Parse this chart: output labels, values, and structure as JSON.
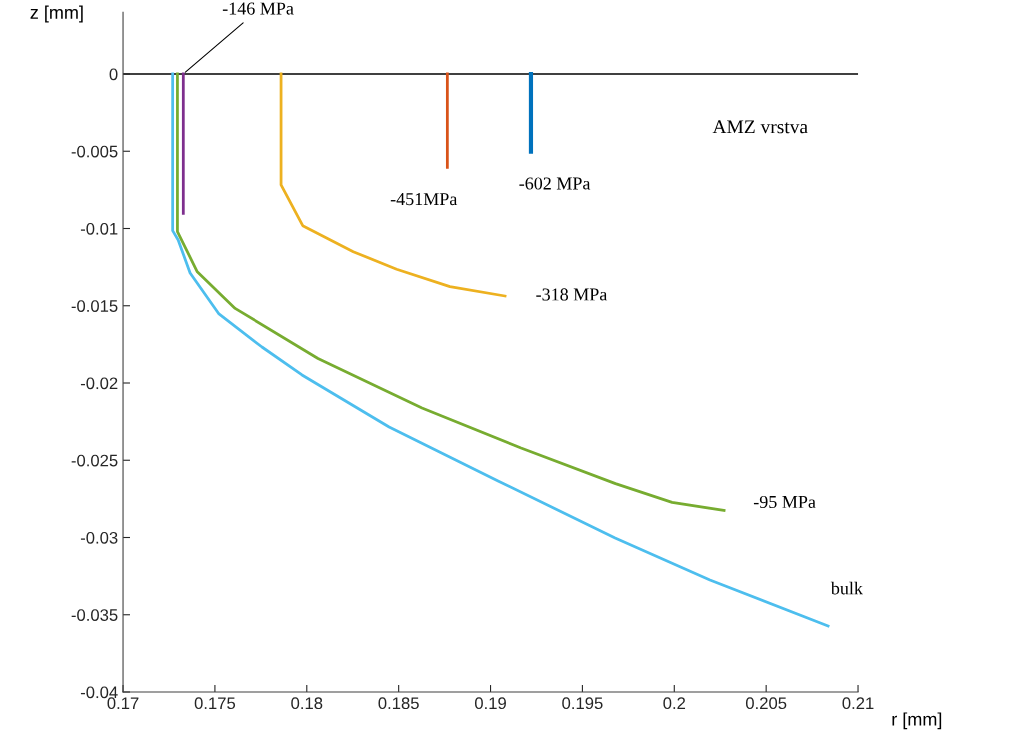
{
  "chart_data": {
    "type": "line",
    "xlabel": "r [mm]",
    "ylabel": "z [mm]",
    "xlim": [
      0.17,
      0.21
    ],
    "ylim": [
      -0.04,
      0.004
    ],
    "xticks": [
      0.17,
      0.175,
      0.18,
      0.185,
      0.19,
      0.195,
      0.2,
      0.205,
      0.21
    ],
    "yticks": [
      -0.04,
      -0.035,
      -0.03,
      -0.025,
      -0.02,
      -0.015,
      -0.01,
      -0.005,
      0
    ],
    "grid": false,
    "legend": false,
    "marker": "none",
    "line_style": "solid",
    "ref_lines": [
      {
        "axis": "y",
        "value": 0,
        "color": "#000000"
      }
    ],
    "annotations": [
      "AMZ vrstva"
    ],
    "series": [
      {
        "name": "-602 MPa",
        "color": "#0072bd",
        "x": [
          0.1922,
          0.1922
        ],
        "values": [
          0,
          -0.00503
        ]
      },
      {
        "name": "-451MPa",
        "color": "#d95319",
        "x": [
          0.18765,
          0.18765
        ],
        "values": [
          0,
          -0.00604
        ]
      },
      {
        "name": "-318 MPa",
        "color": "#edb120",
        "x": [
          0.1786,
          0.1786,
          0.17978,
          0.18253,
          0.18489,
          0.18779,
          0.19079
        ],
        "values": [
          0,
          -0.00718,
          -0.00982,
          -0.0115,
          -0.01264,
          -0.01376,
          -0.01437
        ]
      },
      {
        "name": "-146 MPa",
        "color": "#7e2f8e",
        "x": [
          0.17328,
          0.17328
        ],
        "values": [
          0,
          -0.00902
        ]
      },
      {
        "name": "-95 MPa",
        "color": "#77ac30",
        "x": [
          0.17296,
          0.17296,
          0.17404,
          0.1761,
          0.18061,
          0.18627,
          0.19166,
          0.1968,
          0.19988,
          0.20271
        ],
        "values": [
          0,
          -0.0102,
          -0.0128,
          -0.01517,
          -0.01841,
          -0.02162,
          -0.02421,
          -0.02651,
          -0.02773,
          -0.02825
        ]
      },
      {
        "name": "bulk",
        "color": "#4dbeee",
        "x": [
          0.1727,
          0.1727,
          0.173,
          0.17365,
          0.17522,
          0.17756,
          0.17974,
          0.18448,
          0.19041,
          0.19678,
          0.20194,
          0.20837
        ],
        "values": [
          0,
          -0.01014,
          -0.01074,
          -0.01288,
          -0.01553,
          -0.01767,
          -0.01948,
          -0.02285,
          -0.02634,
          -0.03003,
          -0.03275,
          -0.03573
        ]
      }
    ]
  }
}
